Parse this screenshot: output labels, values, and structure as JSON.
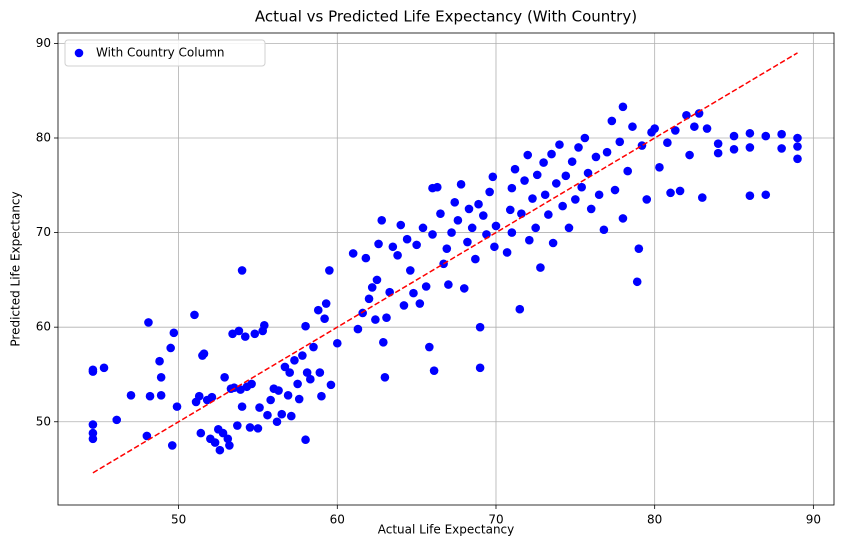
{
  "chart_data": {
    "type": "scatter",
    "title": "Actual vs Predicted Life Expectancy (With Country)",
    "x_label": "Actual Life Expectancy",
    "y_label": "Predicted Life Expectancy",
    "xlim": [
      42.4,
      91.3
    ],
    "ylim": [
      41.2,
      91.1
    ],
    "xticks": [
      50,
      60,
      70,
      80,
      90
    ],
    "yticks": [
      50,
      60,
      70,
      80,
      90
    ],
    "grid": true,
    "legend": "upper left",
    "x": [
      44.6,
      44.6,
      44.6,
      44.6,
      44.6,
      45.3,
      46.1,
      47,
      48,
      48.1,
      48.2,
      48.8,
      48.9,
      48.9,
      49.5,
      49.7,
      49.6,
      49.9,
      51,
      51.1,
      51.3,
      51.4,
      51.5,
      51.6,
      51.8,
      52,
      52.1,
      52.3,
      52.5,
      52.6,
      52.8,
      52.9,
      53.1,
      53.2,
      53.3,
      53.4,
      53.5,
      53.7,
      53.8,
      53.9,
      54,
      54,
      54.2,
      54.3,
      54.5,
      54.6,
      54.8,
      55,
      55.1,
      55.3,
      55.4,
      55.6,
      55.8,
      56,
      56.2,
      56.3,
      56.5,
      56.7,
      56.9,
      57,
      57.1,
      57.3,
      57.5,
      57.6,
      57.8,
      58,
      58,
      58.1,
      58.3,
      58.5,
      58.8,
      58.9,
      59,
      59.2,
      59.3,
      59.5,
      59.6,
      60,
      61,
      61.3,
      61.6,
      61.8,
      62,
      62.2,
      62.4,
      62.5,
      62.6,
      62.8,
      62.9,
      63,
      63.1,
      63.3,
      63.5,
      63.8,
      64,
      64.2,
      64.4,
      64.6,
      64.8,
      65,
      65.2,
      65.4,
      65.6,
      65.8,
      66,
      66,
      66.1,
      66.3,
      66.5,
      66.7,
      66.9,
      67,
      67.2,
      67.4,
      67.6,
      67.8,
      68,
      68.2,
      68.3,
      68.5,
      68.7,
      68.9,
      69,
      69,
      69.2,
      69.4,
      69.6,
      69.8,
      69.9,
      70,
      70.7,
      70.9,
      71,
      71,
      71.2,
      71.5,
      71.6,
      71.8,
      72,
      72.1,
      72.3,
      72.5,
      72.6,
      72.8,
      73,
      73.1,
      73.3,
      73.5,
      73.6,
      73.8,
      74,
      74.2,
      74.4,
      74.6,
      74.8,
      75,
      75.2,
      75.4,
      75.6,
      75.8,
      76,
      76.3,
      76.5,
      76.8,
      77,
      77.3,
      77.5,
      77.8,
      78,
      78,
      78.3,
      78.6,
      78.9,
      79,
      79.2,
      79.5,
      79.8,
      80,
      80.3,
      80.8,
      81,
      81.3,
      81.6,
      82,
      82.2,
      82.5,
      82.8,
      83,
      83.3,
      84,
      84,
      85,
      85,
      86,
      86,
      86,
      87,
      87,
      88,
      88,
      89,
      89,
      89
    ],
    "series": [
      {
        "name": "With Country Column",
        "color": "#0000ff",
        "values": [
          55.3,
          55.5,
          49.7,
          48.8,
          48.2,
          55.7,
          50.2,
          52.8,
          48.5,
          60.5,
          52.7,
          56.4,
          54.7,
          52.8,
          57.8,
          59.4,
          47.5,
          51.6,
          61.3,
          52.1,
          52.7,
          48.8,
          57,
          57.2,
          52.3,
          48.2,
          52.6,
          47.8,
          49.2,
          47,
          48.8,
          54.7,
          48.2,
          47.5,
          53.5,
          59.3,
          53.6,
          49.6,
          59.6,
          53.4,
          66,
          51.6,
          59,
          53.7,
          49.4,
          54,
          59.3,
          49.3,
          51.5,
          59.6,
          60.2,
          50.7,
          52.3,
          53.5,
          50,
          53.3,
          50.8,
          55.8,
          52.8,
          55.2,
          50.6,
          56.5,
          54,
          52.4,
          57,
          48.1,
          60.1,
          55.2,
          54.5,
          57.9,
          61.8,
          55.2,
          52.7,
          60.9,
          62.5,
          66,
          53.9,
          58.3,
          67.8,
          59.8,
          61.5,
          67.3,
          63,
          64.2,
          60.8,
          65,
          68.8,
          71.3,
          58.4,
          54.7,
          61,
          63.7,
          68.5,
          67.6,
          70.8,
          62.3,
          69.3,
          66,
          63.6,
          68.7,
          62.5,
          70.5,
          64.3,
          57.9,
          69.8,
          74.7,
          55.4,
          74.8,
          72,
          66.7,
          68.3,
          64.5,
          70,
          73.2,
          71.3,
          75.1,
          64.1,
          69,
          72.5,
          70.5,
          67.2,
          73,
          55.7,
          60,
          71.8,
          69.8,
          74.3,
          75.9,
          68.5,
          70.7,
          67.9,
          72.4,
          70,
          74.7,
          76.7,
          61.9,
          72,
          75.5,
          78.2,
          69.2,
          73.6,
          70.5,
          76.1,
          66.3,
          77.4,
          74,
          71.9,
          78.3,
          68.9,
          75.2,
          79.3,
          72.8,
          76,
          70.5,
          77.5,
          73.5,
          79,
          74.8,
          80,
          76.3,
          72.5,
          78,
          74,
          70.3,
          78.5,
          81.8,
          74.5,
          79.6,
          83.3,
          71.5,
          76.5,
          81.2,
          64.8,
          68.3,
          79.2,
          73.5,
          80.6,
          81,
          76.9,
          79.5,
          74.2,
          80.8,
          74.4,
          82.4,
          78.2,
          81.2,
          82.6,
          73.7,
          81,
          79.4,
          78.4,
          80.2,
          78.8,
          80.5,
          73.9,
          79,
          74,
          80.2,
          80.4,
          78.9,
          80,
          77.8,
          79.1
        ]
      }
    ],
    "reference_line": {
      "x": [
        44.6,
        89
      ],
      "y": [
        44.6,
        89
      ],
      "color": "#ff0000",
      "style": "dashed"
    }
  }
}
